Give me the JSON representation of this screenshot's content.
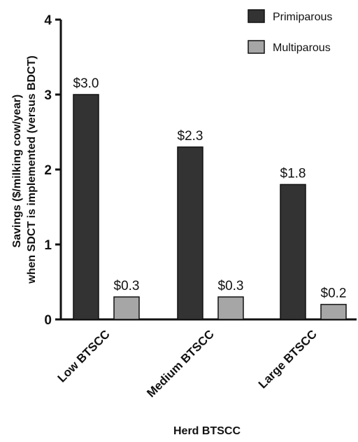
{
  "chart_data": {
    "type": "bar",
    "title": "",
    "xlabel": "Herd BTSCC",
    "ylabel_lines": [
      "Savings ($/milking cow/year)",
      "when SDCT is implemented (versus BDCT)"
    ],
    "categories": [
      "Low BTSCC",
      "Medium BTSCC",
      "Large BTSCC"
    ],
    "series": [
      {
        "name": "Primiparous",
        "values": [
          3.0,
          2.3,
          1.8
        ],
        "labels": [
          "$3.0",
          "$2.3",
          "$1.8"
        ],
        "color": "#333333"
      },
      {
        "name": "Multiparous",
        "values": [
          0.3,
          0.3,
          0.2
        ],
        "labels": [
          "$0.3",
          "$0.3",
          "$0.2"
        ],
        "color": "#a6a6a6"
      }
    ],
    "ylim": [
      0,
      4
    ],
    "yticks": [
      "0",
      "1",
      "2",
      "3",
      "4"
    ],
    "grid": false,
    "legend_position": "top-right"
  }
}
